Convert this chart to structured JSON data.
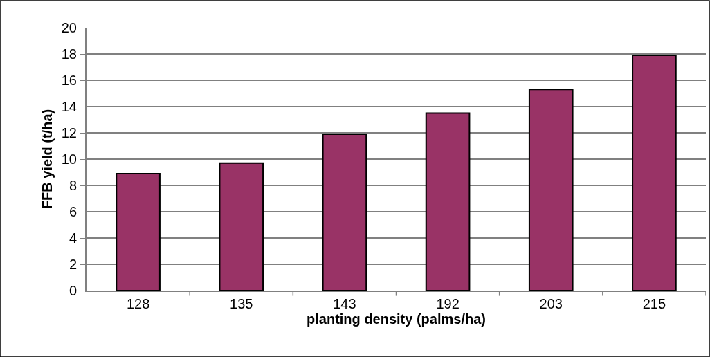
{
  "chart_data": {
    "type": "bar",
    "xlabel": "planting density (palms/ha)",
    "ylabel": "FFB yield (t/ha)",
    "categories": [
      "128",
      "135",
      "143",
      "192",
      "203",
      "215"
    ],
    "values": [
      8.9,
      9.7,
      11.9,
      13.5,
      15.3,
      17.9
    ],
    "color": "#993366",
    "ylim": [
      0,
      20
    ],
    "yticks": [
      0,
      2,
      4,
      6,
      8,
      10,
      12,
      14,
      16,
      18,
      20
    ],
    "grid": "y",
    "legend": false
  }
}
